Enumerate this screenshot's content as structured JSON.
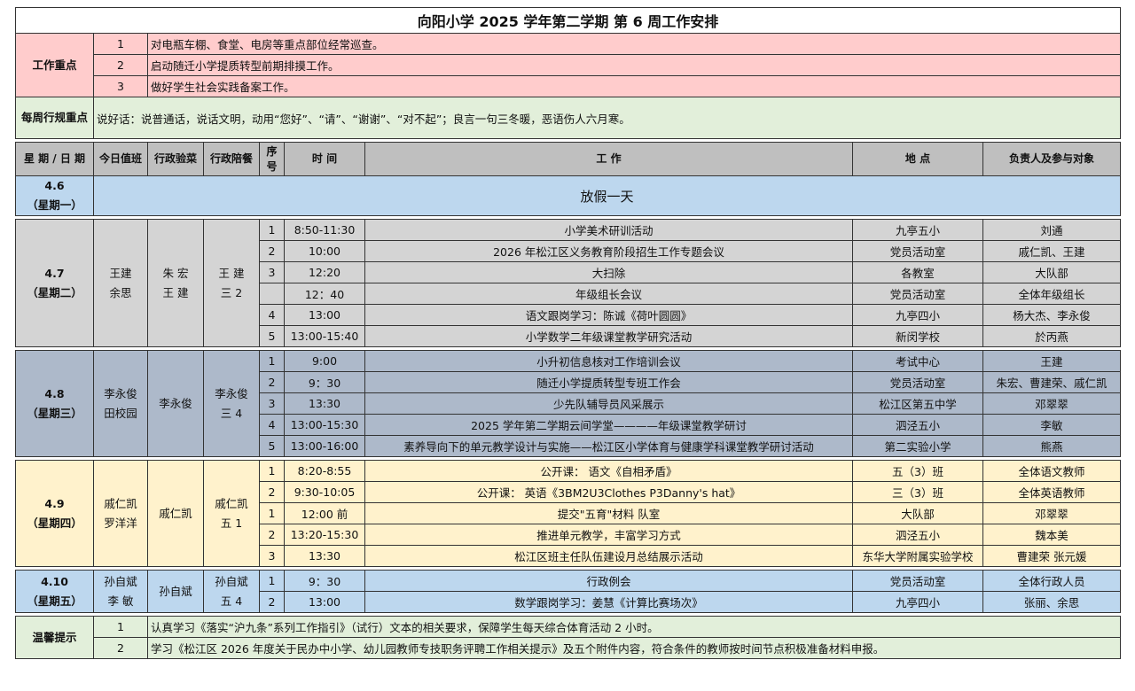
{
  "title": "向阳小学 2025 学年第二学期 第 6 周工作安排",
  "focus": {
    "label": "工作重点",
    "items": [
      {
        "no": "1",
        "text": "对电瓶车棚、食堂、电房等重点部位经常巡查。"
      },
      {
        "no": "2",
        "text": "启动随迁小学提质转型前期排摸工作。"
      },
      {
        "no": "3",
        "text": "做好学生社会实践备案工作。"
      }
    ]
  },
  "weekly": {
    "label": "每周行规重点",
    "text": "说好话：说普通话，说话文明，动用“您好”、“请”、“谢谢”、“对不起”；良言一句三冬暖，恶语伤人六月寒。"
  },
  "headers": [
    "星 期 / 日 期",
    "今日值班",
    "行政验菜",
    "行政陪餐",
    "序号",
    "时 间",
    "工 作",
    "地 点",
    "负责人及参与对象"
  ],
  "holiday": {
    "date": "4.6",
    "weekday": "（星期一）",
    "text": "放假一天",
    "color": "#bdd7ee"
  },
  "days": [
    {
      "date": "4.7",
      "weekday": "（星期二）",
      "duty": "王建\n余思",
      "inspect": "朱 宏\n王 建",
      "meal": "王 建\n三 2",
      "color": "#d4d4d4",
      "rows": [
        {
          "seq": "1",
          "time": "8:50-11:30",
          "work": "小学美术研训活动",
          "place": "九亭五小",
          "person": "刘通"
        },
        {
          "seq": "2",
          "time": "10:00",
          "work": "2026 年松江区义务教育阶段招生工作专题会议",
          "place": "党员活动室",
          "person": "戚仁凯、王建"
        },
        {
          "seq": "3",
          "time": "12:20",
          "work": "大扫除",
          "place": "各教室",
          "person": "大队部"
        },
        {
          "seq": "",
          "time": "12：40",
          "work": "年级组长会议",
          "place": "党员活动室",
          "person": "全体年级组长"
        },
        {
          "seq": "4",
          "time": "13:00",
          "work": "语文跟岗学习：陈诚《荷叶圆圆》",
          "place": "九亭四小",
          "person": "杨大杰、李永俊"
        },
        {
          "seq": "5",
          "time": "13:00-15:40",
          "work": "小学数学二年级课堂教学研究活动",
          "place": "新闵学校",
          "person": "於丙燕"
        }
      ]
    },
    {
      "date": "4.8",
      "weekday": "（星期三）",
      "duty": "李永俊\n田校园",
      "inspect": "李永俊",
      "meal": "李永俊\n三 4",
      "color": "#adb9ca",
      "rows": [
        {
          "seq": "1",
          "time": "9:00",
          "work": "小升初信息核对工作培训会议",
          "place": "考试中心",
          "person": "王建"
        },
        {
          "seq": "2",
          "time": "9：30",
          "work": "随迁小学提质转型专班工作会",
          "place": "党员活动室",
          "person": "朱宏、曹建荣、戚仁凯"
        },
        {
          "seq": "3",
          "time": "13:30",
          "work": "少先队辅导员风采展示",
          "place": "松江区第五中学",
          "person": "邓翠翠"
        },
        {
          "seq": "4",
          "time": "13:00-15:30",
          "work": "2025 学年第二学期云间学堂————年级课堂教学研讨",
          "place": "泗泾五小",
          "person": "李敏"
        },
        {
          "seq": "5",
          "time": "13:00-16:00",
          "work": "素养导向下的单元教学设计与实施——松江区小学体育与健康学科课堂教学研讨活动",
          "place": "第二实验小学",
          "person": "熊燕"
        }
      ]
    },
    {
      "date": "4.9",
      "weekday": "（星期四）",
      "duty": "戚仁凯\n罗洋洋",
      "inspect": "戚仁凯",
      "meal": "戚仁凯\n五 1",
      "color": "#fff2cc",
      "rows": [
        {
          "seq": "1",
          "time": "8:20-8:55",
          "work": "公开课： 语文《自相矛盾》",
          "place": "五（3）班",
          "person": "全体语文教师"
        },
        {
          "seq": "2",
          "time": "9:30-10:05",
          "work": "公开课： 英语《3BM2U3Clothes P3Danny's hat》",
          "place": "三（3）班",
          "person": "全体英语教师"
        },
        {
          "seq": "1",
          "time": "12:00 前",
          "work": "提交\"五育\"材料  队室",
          "place": "大队部",
          "person": "邓翠翠"
        },
        {
          "seq": "2",
          "time": "13:20-15:30",
          "work": "推进单元教学，丰富学习方式",
          "place": "泗泾五小",
          "person": "魏本美"
        },
        {
          "seq": "3",
          "time": "13:30",
          "work": "松江区班主任队伍建设月总结展示活动",
          "place": "东华大学附属实验学校",
          "person": "曹建荣 张元媛"
        }
      ]
    },
    {
      "date": "4.10",
      "weekday": "（星期五）",
      "duty": "孙自斌\n李  敏",
      "inspect": "孙自斌",
      "meal": "孙自斌\n五 4",
      "color": "#bdd7ee",
      "rows": [
        {
          "seq": "1",
          "time": "9：30",
          "work": "行政例会",
          "place": "党员活动室",
          "person": "全体行政人员"
        },
        {
          "seq": "2",
          "time": "13:00",
          "work": "数学跟岗学习：姜慧《计算比赛场次》",
          "place": "九亭四小",
          "person": "张丽、余思"
        }
      ]
    }
  ],
  "tips": {
    "label": "温馨提示",
    "items": [
      {
        "no": "1",
        "text": "认真学习《落实“沪九条”系列工作指引》（试行）文本的相关要求，保障学生每天综合体育活动 2 小时。"
      },
      {
        "no": "2",
        "text": "学习《松江区 2026 年度关于民办中小学、幼儿园教师专技职务评聘工作相关提示》及五个附件内容，符合条件的教师按时间节点积极准备材料申报。"
      }
    ]
  }
}
